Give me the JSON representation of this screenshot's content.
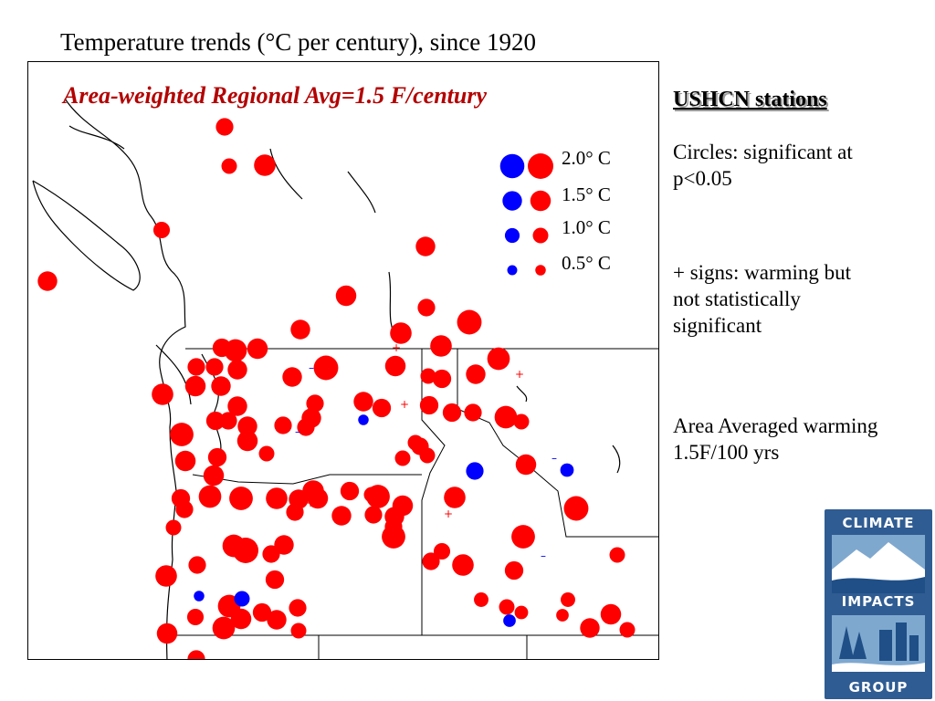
{
  "title": "Temperature trends (°C per century), since 1920",
  "map": {
    "subtitle": "Area-weighted Regional Avg=1.5 F/century",
    "legend": [
      {
        "label": "2.0° C",
        "value": 2.0
      },
      {
        "label": "1.5° C",
        "value": 1.5
      },
      {
        "label": "1.0° C",
        "value": 1.0
      },
      {
        "label": "0.5° C",
        "value": 0.5
      }
    ],
    "colors": {
      "warming": "#ff0000",
      "cooling": "#0000ff",
      "border": "#000000",
      "coastline": "#000000"
    }
  },
  "side": {
    "heading": "USHCN stations",
    "circles_note": "Circles: significant at p<0.05",
    "plus_note": "+ signs: warming but not statistically significant",
    "area_note": "Area Averaged warming 1.5F/100 yrs"
  },
  "logo": {
    "top": "CLIMATE",
    "middle": "IMPACTS",
    "bottom": "GROUP",
    "icon": "mountain-forest-river-icon"
  }
}
